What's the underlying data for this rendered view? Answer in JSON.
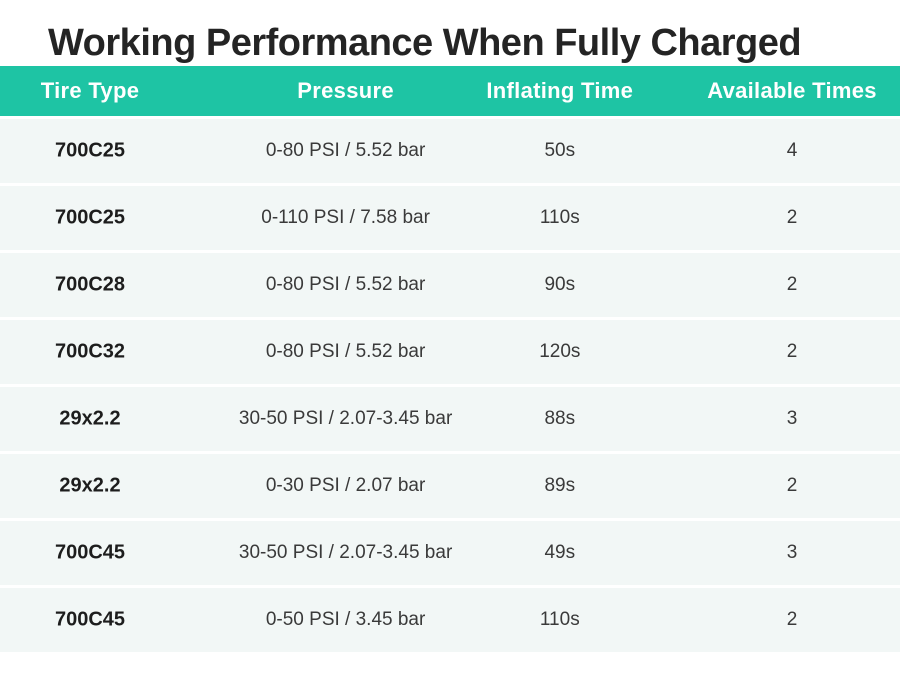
{
  "title": "Working Performance When Fully Charged",
  "chart_data": {
    "type": "table",
    "title": "Working Performance When Fully Charged",
    "columns": [
      "Tire Type",
      "Pressure",
      "Inflating Time",
      "Available Times"
    ],
    "rows": [
      [
        "700C25",
        "0-80 PSI / 5.52 bar",
        "50s",
        "4"
      ],
      [
        "700C25",
        "0-110 PSI / 7.58 bar",
        "110s",
        "2"
      ],
      [
        "700C28",
        "0-80 PSI / 5.52 bar",
        "90s",
        "2"
      ],
      [
        "700C32",
        "0-80 PSI / 5.52 bar",
        "120s",
        "2"
      ],
      [
        "29x2.2",
        "30-50 PSI / 2.07-3.45 bar",
        "88s",
        "3"
      ],
      [
        "29x2.2",
        "0-30 PSI / 2.07 bar",
        "89s",
        "2"
      ],
      [
        "700C45",
        "30-50 PSI / 2.07-3.45 bar",
        "49s",
        "3"
      ],
      [
        "700C45",
        "0-50 PSI / 3.45 bar",
        "110s",
        "2"
      ]
    ]
  },
  "colors": {
    "header_bg": "#1ec4a4",
    "row_bg": "#f2f7f6",
    "title_text": "#242424",
    "header_text": "#ffffff"
  }
}
